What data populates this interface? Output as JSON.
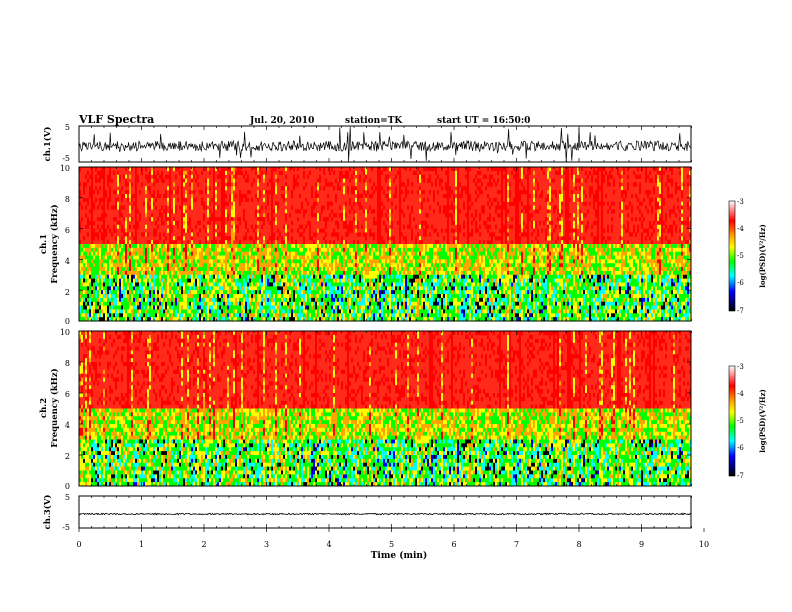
{
  "header": {
    "title": "VLF Spectra",
    "date": "Jul. 20, 2010",
    "station": "station=TK",
    "start_ut": "start UT = 16:50:0"
  },
  "chart_data": [
    {
      "type": "line",
      "panel": "ch1-waveform",
      "ylabel": "ch.1(V)",
      "yticks": [
        "5",
        "-5"
      ],
      "ylim": [
        -5,
        5
      ],
      "xlim": [
        0,
        10
      ],
      "color": "#000000"
    },
    {
      "type": "heatmap",
      "panel": "ch1-spectrogram",
      "ylabel_top": "ch.1",
      "ylabel": "Frequency (kHz)",
      "yticks": [
        "0",
        "2",
        "4",
        "6",
        "8",
        "10"
      ],
      "ylim": [
        0,
        10
      ],
      "xlim": [
        0,
        10
      ],
      "colorbar": {
        "label": "log(PSD)(V²/Hz)",
        "ticks": [
          "-3",
          "-4",
          "-5",
          "-6",
          "-7"
        ],
        "range": [
          -7,
          -3
        ],
        "colors": [
          "#ffffff",
          "#ff0000",
          "#ffa500",
          "#ffff00",
          "#00ff00",
          "#00ffff",
          "#0000ff",
          "#000000"
        ]
      }
    },
    {
      "type": "heatmap",
      "panel": "ch2-spectrogram",
      "ylabel_top": "ch.2",
      "ylabel": "Frequency (kHz)",
      "yticks": [
        "0",
        "2",
        "4",
        "6",
        "8",
        "10"
      ],
      "ylim": [
        0,
        10
      ],
      "xlim": [
        0,
        10
      ],
      "colorbar": {
        "label": "log(PSD)(V²/Hz)",
        "ticks": [
          "-3",
          "-4",
          "-5",
          "-6",
          "-7"
        ],
        "range": [
          -7,
          -3
        ],
        "colors": [
          "#ffffff",
          "#ff0000",
          "#ffa500",
          "#ffff00",
          "#00ff00",
          "#00ffff",
          "#0000ff",
          "#000000"
        ]
      }
    },
    {
      "type": "line",
      "panel": "ch3-waveform",
      "ylabel": "ch.3(V)",
      "yticks": [
        "5",
        "-5"
      ],
      "ylim": [
        -5,
        5
      ],
      "xlim": [
        0,
        10
      ],
      "color": "#000000"
    }
  ],
  "xaxis": {
    "label": "Time (min)",
    "ticks": [
      "0",
      "1",
      "2",
      "3",
      "4",
      "5",
      "6",
      "7",
      "8",
      "9",
      "10"
    ],
    "range": [
      0,
      10
    ]
  }
}
